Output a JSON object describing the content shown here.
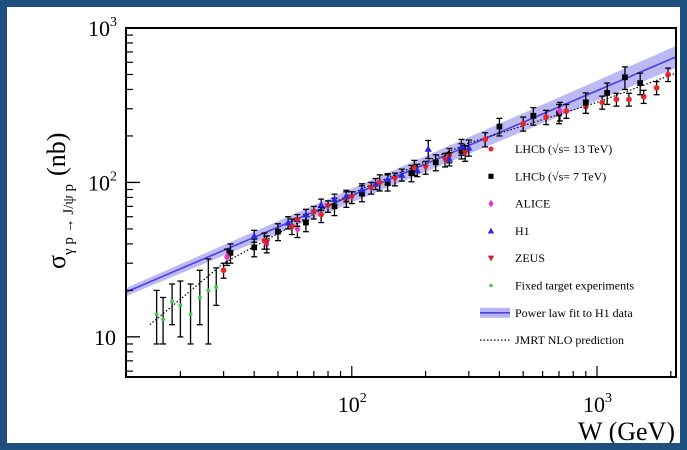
{
  "chart_data": {
    "type": "scatter",
    "title": "",
    "xlabel": "W (GeV)",
    "ylabel_main": "σ",
    "ylabel_sub": "γ p → J/ψ p",
    "ylabel_unit": "(nb)",
    "x_scale": "log",
    "y_scale": "log",
    "xlim": [
      12,
      2100
    ],
    "ylim": [
      5.5,
      1000
    ],
    "x_ticks": [
      {
        "value": 100,
        "base": "10",
        "exp": "2"
      },
      {
        "value": 1000,
        "base": "10",
        "exp": "3"
      }
    ],
    "y_ticks": [
      {
        "value": 10,
        "label": "10"
      },
      {
        "value": 100,
        "base": "10",
        "exp": "2"
      },
      {
        "value": 1000,
        "base": "10",
        "exp": "3"
      }
    ],
    "legend_position": "right",
    "series": [
      {
        "name": "LHCb (√s= 13 TeV)",
        "marker": "circle",
        "color": "#e8262a",
        "points": [
          {
            "x": 30,
            "y": 27,
            "err": 3
          },
          {
            "x": 44,
            "y": 42,
            "err": 5
          },
          {
            "x": 57,
            "y": 52,
            "err": 6
          },
          {
            "x": 75,
            "y": 62,
            "err": 7
          },
          {
            "x": 95,
            "y": 78,
            "err": 9
          },
          {
            "x": 130,
            "y": 100,
            "err": 12
          },
          {
            "x": 180,
            "y": 125,
            "err": 14
          },
          {
            "x": 250,
            "y": 150,
            "err": 16
          },
          {
            "x": 350,
            "y": 190,
            "err": 20
          },
          {
            "x": 500,
            "y": 240,
            "err": 25
          },
          {
            "x": 620,
            "y": 265,
            "err": 28
          },
          {
            "x": 750,
            "y": 290,
            "err": 30
          },
          {
            "x": 900,
            "y": 310,
            "err": 30
          },
          {
            "x": 1050,
            "y": 330,
            "err": 32
          },
          {
            "x": 1200,
            "y": 345,
            "err": 33
          },
          {
            "x": 1350,
            "y": 345,
            "err": 33
          },
          {
            "x": 1550,
            "y": 360,
            "err": 35
          },
          {
            "x": 1750,
            "y": 410,
            "err": 40
          },
          {
            "x": 1950,
            "y": 500,
            "err": 50
          }
        ]
      },
      {
        "name": "LHCb (√s= 7 TeV)",
        "marker": "square",
        "color": "#000000",
        "points": [
          {
            "x": 32,
            "y": 35,
            "err": 5
          },
          {
            "x": 40,
            "y": 38,
            "err": 5
          },
          {
            "x": 50,
            "y": 48,
            "err": 6
          },
          {
            "x": 65,
            "y": 55,
            "err": 7
          },
          {
            "x": 85,
            "y": 70,
            "err": 9
          },
          {
            "x": 110,
            "y": 85,
            "err": 10
          },
          {
            "x": 140,
            "y": 100,
            "err": 12
          },
          {
            "x": 175,
            "y": 115,
            "err": 14
          },
          {
            "x": 220,
            "y": 135,
            "err": 16
          },
          {
            "x": 280,
            "y": 160,
            "err": 18
          },
          {
            "x": 400,
            "y": 230,
            "err": 30
          },
          {
            "x": 550,
            "y": 270,
            "err": 35
          },
          {
            "x": 700,
            "y": 280,
            "err": 40
          },
          {
            "x": 900,
            "y": 330,
            "err": 50
          },
          {
            "x": 1100,
            "y": 380,
            "err": 60
          },
          {
            "x": 1300,
            "y": 480,
            "err": 80
          },
          {
            "x": 1500,
            "y": 440,
            "err": 70
          }
        ]
      },
      {
        "name": "ALICE",
        "marker": "diamond",
        "color": "#f02fc2",
        "points": [
          {
            "x": 31,
            "y": 33,
            "err": 4
          },
          {
            "x": 45,
            "y": 40,
            "err": 5
          },
          {
            "x": 60,
            "y": 50,
            "err": 6
          },
          {
            "x": 706,
            "y": 290,
            "err": 40
          }
        ]
      },
      {
        "name": "H1",
        "marker": "triangle-up",
        "color": "#2a28d8",
        "points": [
          {
            "x": 40,
            "y": 45,
            "err": 4
          },
          {
            "x": 55,
            "y": 55,
            "err": 5
          },
          {
            "x": 65,
            "y": 62,
            "err": 5
          },
          {
            "x": 75,
            "y": 72,
            "err": 6
          },
          {
            "x": 85,
            "y": 78,
            "err": 6
          },
          {
            "x": 95,
            "y": 82,
            "err": 7
          },
          {
            "x": 110,
            "y": 90,
            "err": 8
          },
          {
            "x": 125,
            "y": 98,
            "err": 8
          },
          {
            "x": 140,
            "y": 105,
            "err": 9
          },
          {
            "x": 160,
            "y": 112,
            "err": 10
          },
          {
            "x": 185,
            "y": 120,
            "err": 11
          },
          {
            "x": 205,
            "y": 165,
            "err": 22
          },
          {
            "x": 250,
            "y": 142,
            "err": 14
          },
          {
            "x": 280,
            "y": 170,
            "err": 20
          },
          {
            "x": 300,
            "y": 168,
            "err": 20
          }
        ]
      },
      {
        "name": "ZEUS",
        "marker": "triangle-down",
        "color": "#d21f2c",
        "points": [
          {
            "x": 45,
            "y": 41,
            "err": 4
          },
          {
            "x": 60,
            "y": 57,
            "err": 5
          },
          {
            "x": 70,
            "y": 64,
            "err": 6
          },
          {
            "x": 80,
            "y": 70,
            "err": 6
          },
          {
            "x": 100,
            "y": 80,
            "err": 7
          },
          {
            "x": 120,
            "y": 92,
            "err": 8
          },
          {
            "x": 150,
            "y": 105,
            "err": 10
          },
          {
            "x": 200,
            "y": 125,
            "err": 12
          },
          {
            "x": 240,
            "y": 140,
            "err": 14
          },
          {
            "x": 290,
            "y": 155,
            "err": 18
          }
        ]
      },
      {
        "name": "Fixed target experiments",
        "marker": "star",
        "color": "#39cc4a",
        "points": [
          {
            "x": 16,
            "y": 14,
            "err_lo": 5,
            "err_hi": 6
          },
          {
            "x": 17,
            "y": 13,
            "err_lo": 4,
            "err_hi": 5
          },
          {
            "x": 18.5,
            "y": 17,
            "err_lo": 5,
            "err_hi": 5
          },
          {
            "x": 20,
            "y": 16,
            "err_lo": 6,
            "err_hi": 7
          },
          {
            "x": 22,
            "y": 14,
            "err_lo": 5,
            "err_hi": 8
          },
          {
            "x": 24,
            "y": 18,
            "err_lo": 6,
            "err_hi": 9
          },
          {
            "x": 26,
            "y": 20,
            "err_lo": 11,
            "err_hi": 12
          },
          {
            "x": 28,
            "y": 21,
            "err_lo": 5,
            "err_hi": 7
          }
        ]
      }
    ],
    "fits": [
      {
        "name": "Power law fit to H1 data",
        "style": "band",
        "color": "#4b3fe6",
        "band_color": "#a7a2f2",
        "from": [
          12,
          19.5
        ],
        "to": [
          2100,
          650
        ]
      },
      {
        "name": "JMRT NLO prediction",
        "style": "dotted",
        "color": "#000000",
        "points": [
          [
            15,
            12
          ],
          [
            30,
            30
          ],
          [
            100,
            85
          ],
          [
            300,
            180
          ],
          [
            1000,
            330
          ],
          [
            2100,
            510
          ]
        ]
      }
    ]
  }
}
